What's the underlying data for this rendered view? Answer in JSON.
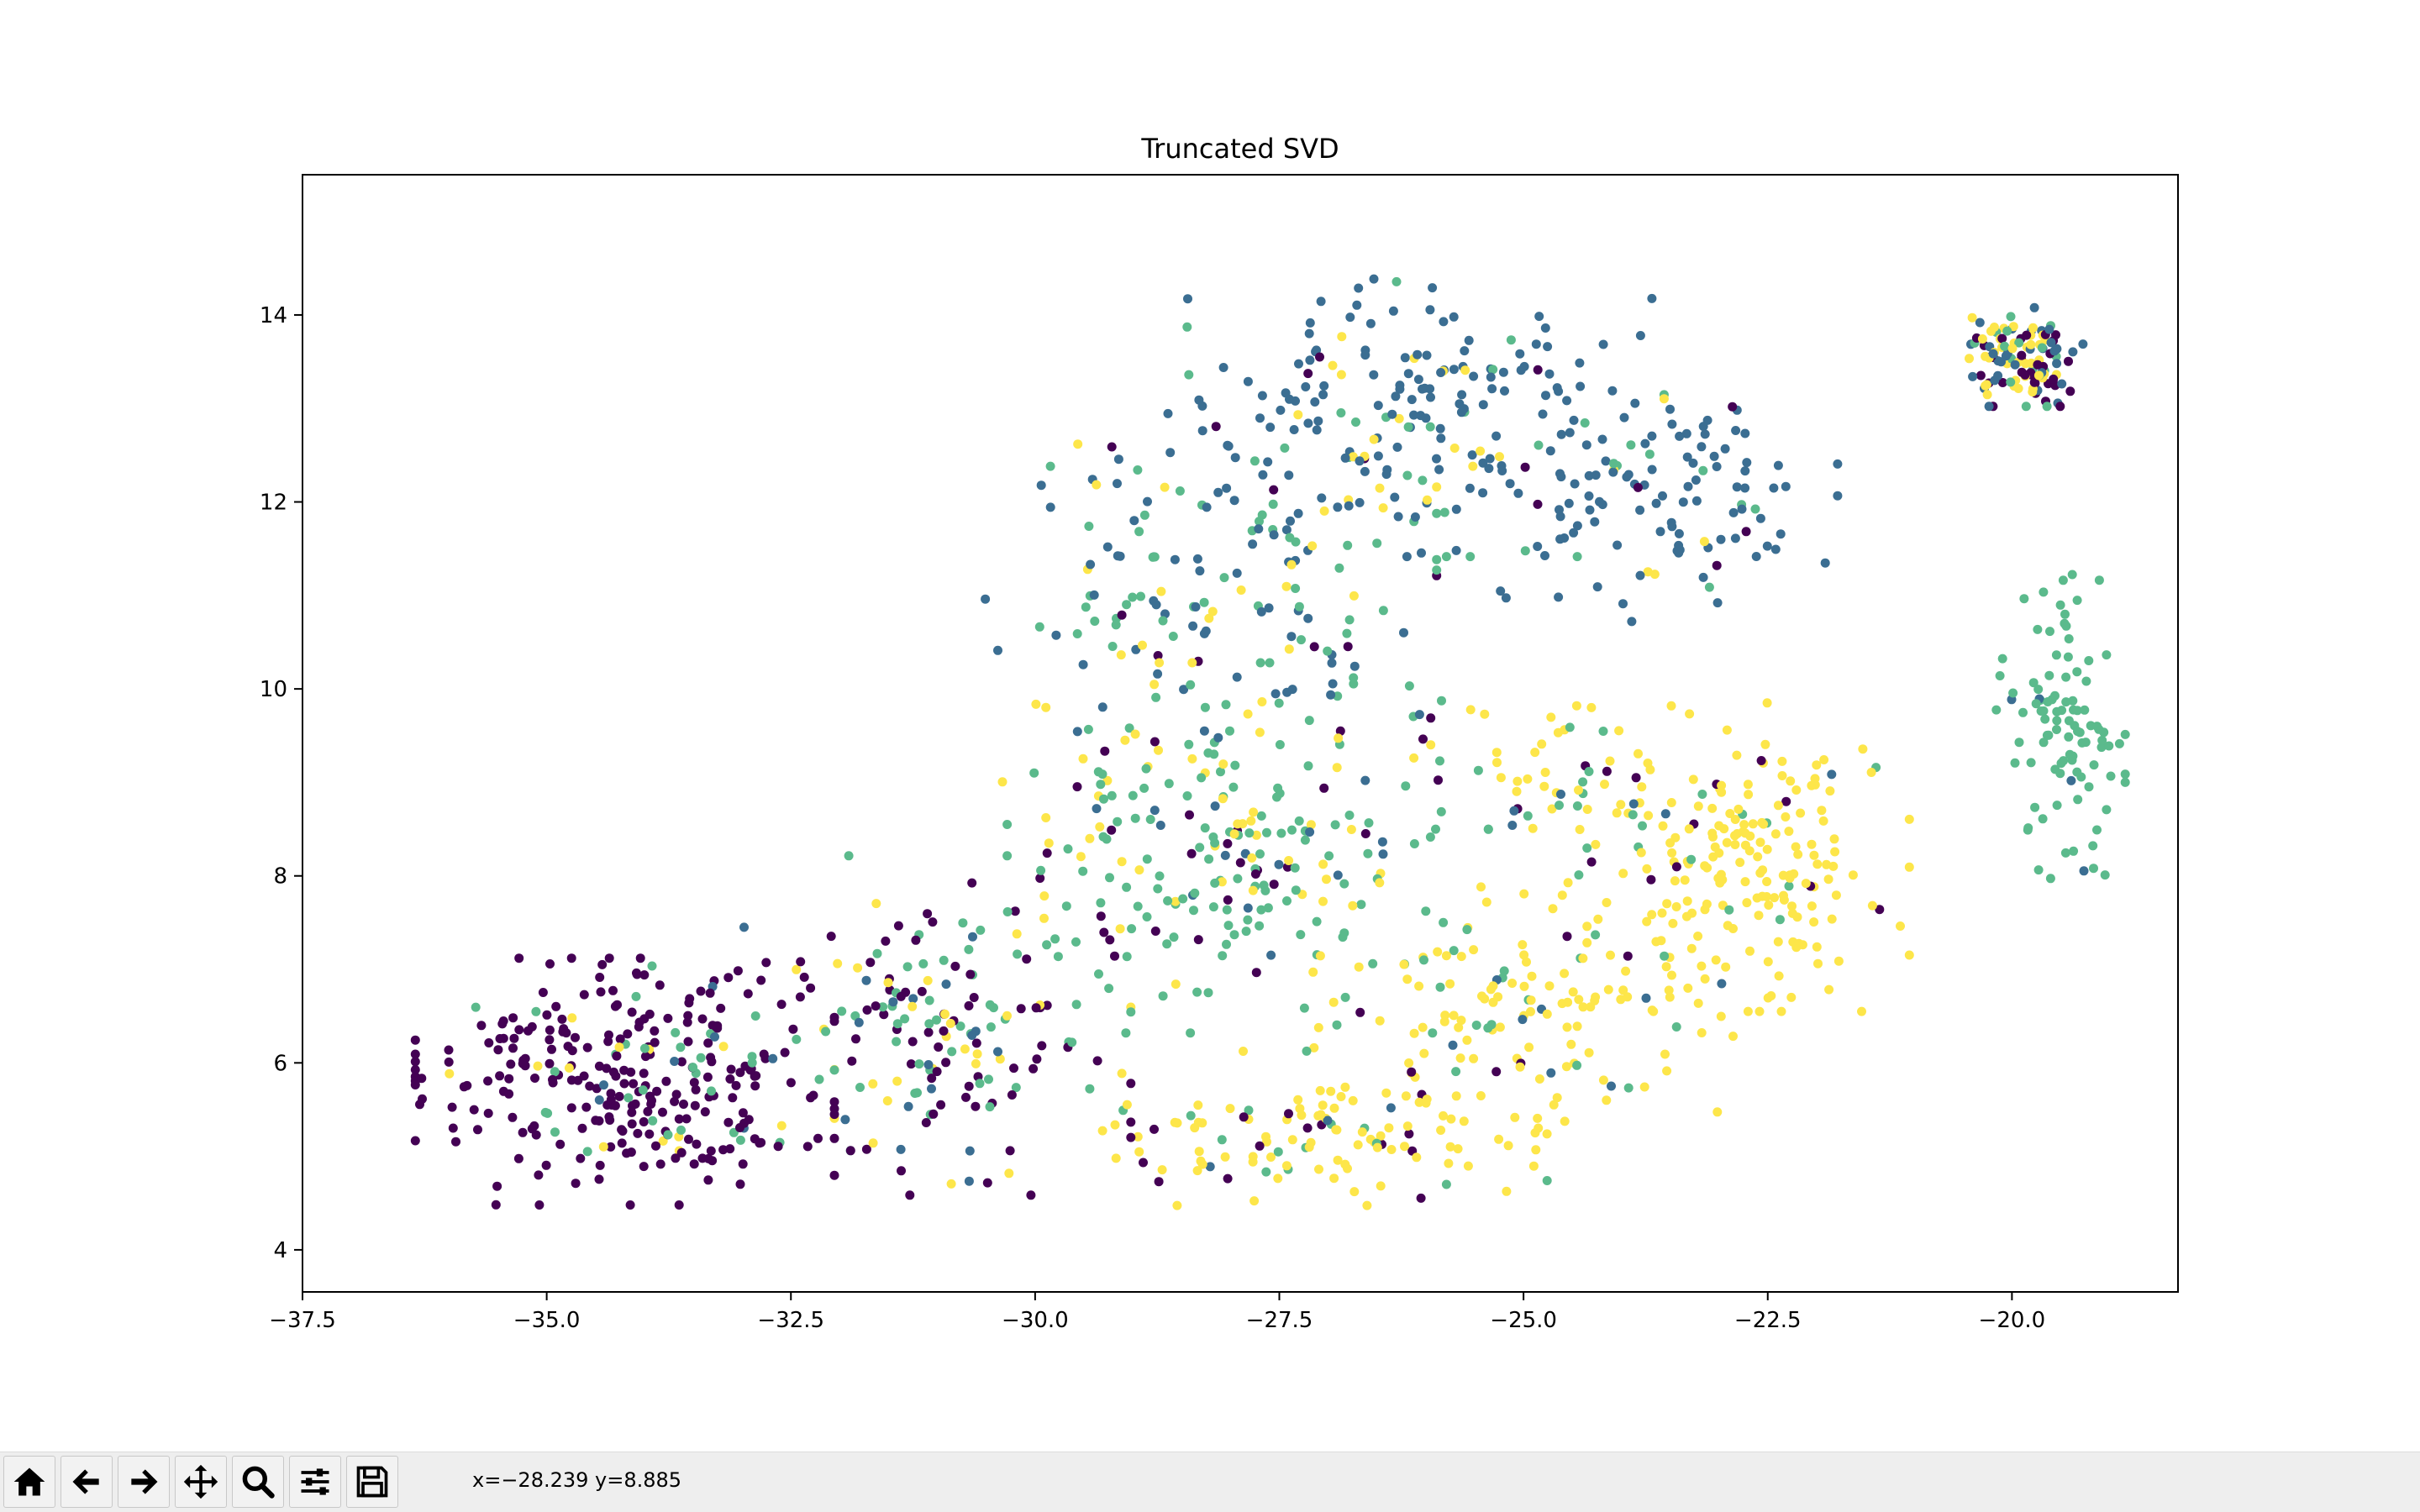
{
  "window": {
    "toolbar": {
      "buttons": [
        {
          "name": "home-button",
          "icon": "home-icon"
        },
        {
          "name": "back-button",
          "icon": "arrow-left-icon"
        },
        {
          "name": "forward-button",
          "icon": "arrow-right-icon"
        },
        {
          "name": "pan-button",
          "icon": "move-icon"
        },
        {
          "name": "zoom-button",
          "icon": "magnifier-icon"
        },
        {
          "name": "configure-subplots-button",
          "icon": "sliders-icon"
        },
        {
          "name": "save-button",
          "icon": "floppy-disk-icon"
        }
      ],
      "coordinates": "x=−28.239 y=8.885"
    }
  },
  "chart_data": {
    "type": "scatter",
    "title": "Truncated SVD",
    "xlabel": "",
    "ylabel": "",
    "xlim": [
      -37.5,
      -18.3
    ],
    "ylim": [
      3.55,
      15.5
    ],
    "xticks": [
      -37.5,
      -35.0,
      -32.5,
      -30.0,
      -27.5,
      -25.0,
      -22.5,
      -20.0
    ],
    "xtick_labels": [
      "−37.5",
      "−35.0",
      "−32.5",
      "−30.0",
      "−27.5",
      "−25.0",
      "−22.5",
      "−20.0"
    ],
    "yticks": [
      4,
      6,
      8,
      10,
      12,
      14
    ],
    "ytick_labels": [
      "4",
      "6",
      "8",
      "10",
      "12",
      "14"
    ],
    "grid": false,
    "legend": "none",
    "colors": {
      "dark-purple": "#440154",
      "blue": "#3b6e92",
      "green": "#5bba8c",
      "yellow": "#fde64a"
    },
    "point_colors": [
      "#440154",
      "#3b6e92",
      "#5bba8c",
      "#fde64a"
    ],
    "clusters": [
      {
        "name": "c0",
        "center": [
          -34.2,
          5.8
        ],
        "spread": [
          1.3,
          0.8
        ],
        "count": 300,
        "mix": [
          0.86,
          0.02,
          0.07,
          0.05
        ]
      },
      {
        "name": "c1",
        "center": [
          -31.0,
          6.4
        ],
        "spread": [
          1.2,
          1.1
        ],
        "count": 170,
        "mix": [
          0.45,
          0.12,
          0.28,
          0.15
        ]
      },
      {
        "name": "c2",
        "center": [
          -28.0,
          8.3
        ],
        "spread": [
          1.6,
          1.2
        ],
        "count": 250,
        "mix": [
          0.08,
          0.12,
          0.6,
          0.2
        ]
      },
      {
        "name": "c3",
        "center": [
          -28.2,
          11.2
        ],
        "spread": [
          1.4,
          1.0
        ],
        "count": 140,
        "mix": [
          0.05,
          0.45,
          0.4,
          0.1
        ]
      },
      {
        "name": "c4",
        "center": [
          -26.0,
          12.9
        ],
        "spread": [
          1.6,
          0.9
        ],
        "count": 190,
        "mix": [
          0.02,
          0.75,
          0.15,
          0.08
        ]
      },
      {
        "name": "c5",
        "center": [
          -23.6,
          12.0
        ],
        "spread": [
          1.1,
          0.8
        ],
        "count": 110,
        "mix": [
          0.05,
          0.85,
          0.05,
          0.05
        ]
      },
      {
        "name": "c6",
        "center": [
          -27.0,
          5.3
        ],
        "spread": [
          1.4,
          0.5
        ],
        "count": 120,
        "mix": [
          0.1,
          0.03,
          0.12,
          0.75
        ]
      },
      {
        "name": "c7",
        "center": [
          -25.0,
          6.6
        ],
        "spread": [
          1.3,
          0.9
        ],
        "count": 130,
        "mix": [
          0.05,
          0.03,
          0.1,
          0.82
        ]
      },
      {
        "name": "c8",
        "center": [
          -22.7,
          8.2
        ],
        "spread": [
          1.0,
          1.0
        ],
        "count": 190,
        "mix": [
          0.05,
          0.02,
          0.04,
          0.89
        ]
      },
      {
        "name": "c9",
        "center": [
          -24.3,
          9.0
        ],
        "spread": [
          1.0,
          0.6
        ],
        "count": 60,
        "mix": [
          0.05,
          0.05,
          0.2,
          0.7
        ]
      },
      {
        "name": "c10",
        "center": [
          -19.9,
          13.55
        ],
        "spread": [
          0.38,
          0.32
        ],
        "count": 120,
        "mix": [
          0.25,
          0.25,
          0.2,
          0.3
        ]
      },
      {
        "name": "c11",
        "center": [
          -19.5,
          9.6
        ],
        "spread": [
          0.4,
          1.1
        ],
        "count": 100,
        "mix": [
          0.0,
          0.02,
          0.98,
          0.0
        ]
      }
    ]
  }
}
